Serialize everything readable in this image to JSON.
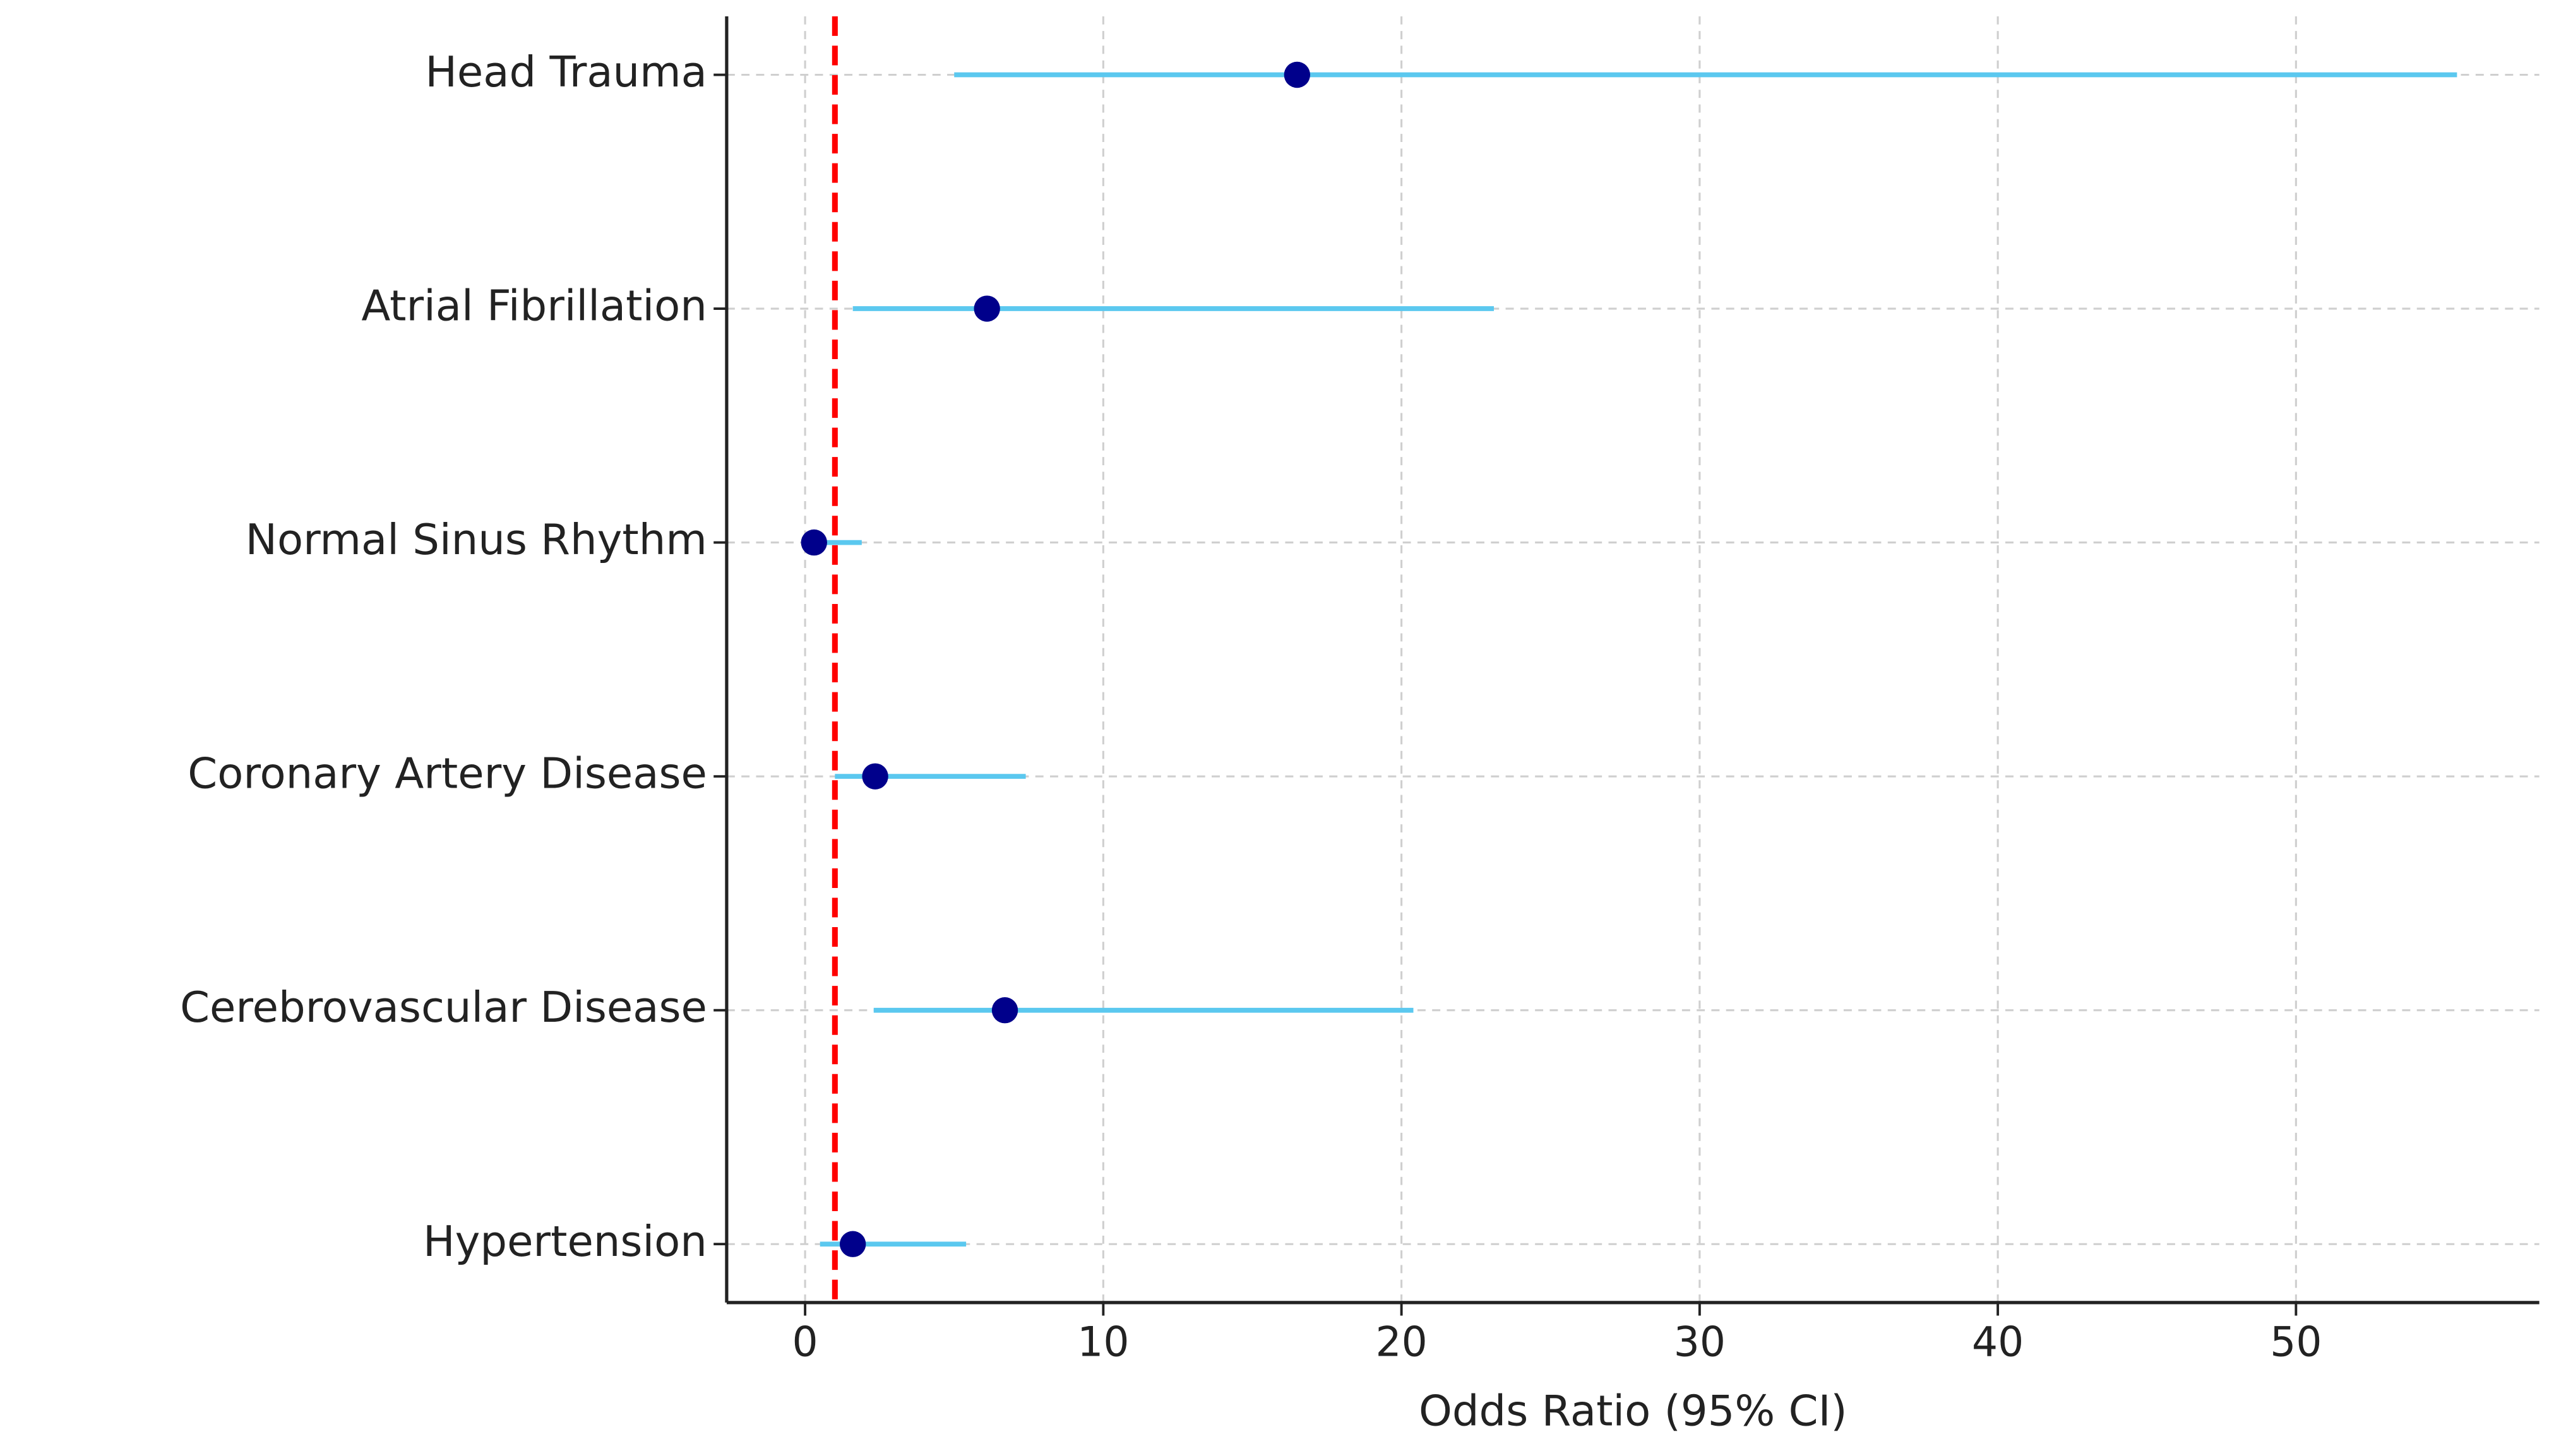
{
  "chart_data": {
    "type": "forest",
    "x_label": "Odds Ratio (95% CI)",
    "categories": [
      "Head Trauma",
      "Atrial Fibrillation",
      "Normal Sinus Rhythm",
      "Coronary Artery Disease",
      "Cerebrovascular Disease",
      "Hypertension"
    ],
    "values": [
      16.5,
      6.1,
      0.3,
      2.35,
      6.7,
      1.6
    ],
    "lower": [
      5.0,
      1.6,
      0.1,
      1.0,
      2.3,
      0.5
    ],
    "upper": [
      55.4,
      23.1,
      1.9,
      7.4,
      20.4,
      5.4
    ],
    "point_color": "#00008b",
    "ci_color": "#5bc8ef",
    "reference_line": 1,
    "reference_color": "#ff0000",
    "xlim": [
      -2.63,
      58.16
    ],
    "xticks": [
      0,
      10,
      20,
      30,
      40,
      50
    ],
    "grid": true
  }
}
